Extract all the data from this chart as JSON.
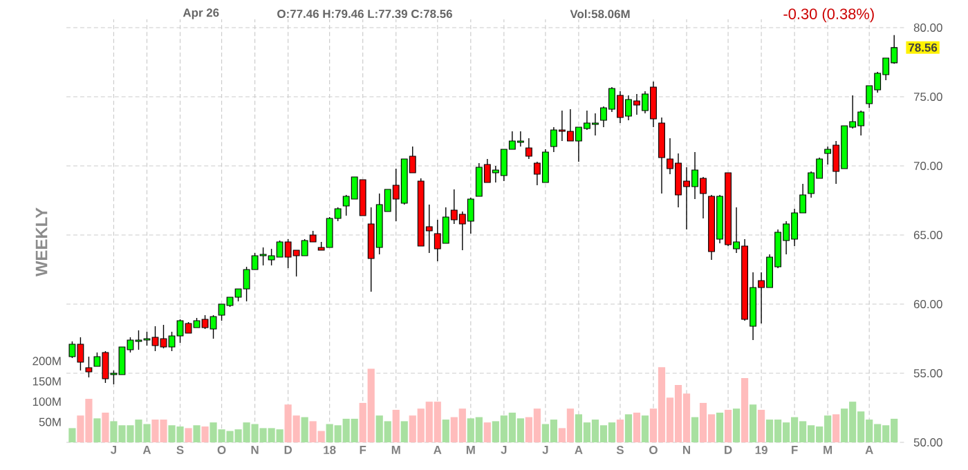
{
  "chart_data": {
    "type": "candlestick",
    "annotations": [
      "Apr 26",
      "O:77.46 H:79.46 L:77.39 C:78.56",
      "Vol:58.06M",
      "-0.30 (0.38%)",
      "WEEKLY",
      {
        "text": "78.56",
        "y": 78.56
      }
    ],
    "categories": [
      null,
      null,
      null,
      null,
      null,
      "J",
      null,
      null,
      null,
      "A",
      null,
      null,
      null,
      "S",
      null,
      null,
      null,
      null,
      "O",
      null,
      null,
      null,
      "N",
      null,
      null,
      null,
      "D",
      null,
      null,
      null,
      null,
      "18",
      null,
      null,
      null,
      "F",
      null,
      null,
      null,
      "M",
      null,
      null,
      null,
      null,
      "A",
      null,
      null,
      null,
      "M",
      null,
      null,
      null,
      "J",
      null,
      null,
      null,
      null,
      "J",
      null,
      null,
      null,
      "A",
      null,
      null,
      null,
      null,
      "S",
      null,
      null,
      null,
      "O",
      null,
      null,
      null,
      "N",
      null,
      null,
      null,
      null,
      "D",
      null,
      null,
      null,
      "19",
      null,
      null,
      null,
      "F",
      null,
      null,
      null,
      "M",
      null,
      null,
      null,
      null,
      "A",
      null,
      null,
      null
    ],
    "ohlc": [
      [
        56.2,
        57.3,
        56.1,
        57.1
      ],
      [
        57.1,
        57.6,
        55.2,
        55.8
      ],
      [
        55.4,
        56.2,
        54.7,
        55.1
      ],
      [
        55.5,
        56.5,
        55.5,
        56.2
      ],
      [
        56.5,
        56.6,
        54.3,
        54.6
      ],
      [
        54.9,
        55.2,
        54.2,
        55.0
      ],
      [
        54.9,
        56.9,
        54.9,
        56.9
      ],
      [
        56.7,
        57.6,
        56.5,
        57.4
      ],
      [
        57.3,
        58.1,
        56.7,
        57.4
      ],
      [
        57.4,
        58.0,
        57.0,
        57.5
      ],
      [
        57.6,
        58.4,
        56.6,
        57.0
      ],
      [
        57.5,
        58.5,
        56.8,
        56.9
      ],
      [
        56.9,
        58.0,
        56.6,
        57.7
      ],
      [
        57.7,
        58.9,
        57.2,
        58.8
      ],
      [
        58.6,
        58.7,
        57.9,
        57.9
      ],
      [
        58.3,
        59.0,
        58.3,
        58.8
      ],
      [
        58.9,
        59.2,
        58.2,
        58.3
      ],
      [
        58.2,
        59.2,
        57.5,
        59.1
      ],
      [
        59.2,
        60.0,
        58.8,
        60.0
      ],
      [
        59.9,
        60.5,
        59.8,
        60.5
      ],
      [
        60.5,
        61.1,
        60.2,
        61.1
      ],
      [
        61.1,
        62.7,
        60.2,
        62.5
      ],
      [
        62.5,
        63.7,
        62.5,
        63.5
      ],
      [
        63.5,
        64.1,
        62.8,
        63.6
      ],
      [
        63.2,
        64.0,
        62.8,
        63.5
      ],
      [
        63.4,
        64.6,
        63.4,
        64.5
      ],
      [
        64.5,
        64.7,
        62.6,
        63.4
      ],
      [
        63.9,
        63.9,
        62.0,
        63.5
      ],
      [
        63.5,
        64.7,
        63.5,
        64.6
      ],
      [
        65.0,
        65.3,
        64.5,
        64.5
      ],
      [
        64.1,
        64.5,
        63.9,
        63.9
      ],
      [
        64.1,
        66.3,
        64.1,
        66.2
      ],
      [
        66.2,
        67.0,
        66.0,
        66.9
      ],
      [
        67.1,
        67.9,
        66.4,
        67.8
      ],
      [
        67.6,
        69.2,
        67.6,
        69.2
      ],
      [
        69.0,
        69.0,
        66.4,
        66.4
      ],
      [
        65.8,
        67.0,
        60.9,
        63.3
      ],
      [
        64.1,
        68.0,
        63.6,
        67.2
      ],
      [
        66.7,
        68.3,
        66.7,
        68.3
      ],
      [
        68.6,
        69.8,
        66.0,
        67.6
      ],
      [
        67.3,
        70.5,
        67.2,
        70.5
      ],
      [
        70.7,
        71.4,
        69.5,
        69.5
      ],
      [
        68.9,
        69.1,
        64.2,
        64.2
      ],
      [
        65.6,
        67.2,
        63.7,
        65.3
      ],
      [
        65.1,
        66.1,
        63.1,
        64.0
      ],
      [
        64.4,
        67.0,
        64.4,
        66.3
      ],
      [
        66.8,
        68.3,
        65.8,
        66.1
      ],
      [
        66.5,
        66.7,
        63.9,
        65.8
      ],
      [
        66.0,
        67.7,
        65.1,
        67.6
      ],
      [
        67.8,
        70.2,
        67.8,
        69.9
      ],
      [
        70.1,
        70.5,
        68.8,
        68.8
      ],
      [
        69.5,
        70.0,
        68.8,
        69.7
      ],
      [
        69.3,
        71.2,
        68.9,
        71.2
      ],
      [
        71.2,
        72.5,
        71.2,
        71.8
      ],
      [
        71.7,
        72.5,
        71.4,
        71.8
      ],
      [
        71.3,
        72.0,
        70.5,
        70.7
      ],
      [
        70.2,
        70.3,
        68.6,
        69.4
      ],
      [
        68.8,
        71.2,
        68.8,
        71.0
      ],
      [
        71.4,
        72.8,
        71.0,
        72.6
      ],
      [
        72.6,
        74.0,
        71.8,
        72.5
      ],
      [
        72.5,
        74.1,
        71.8,
        71.8
      ],
      [
        71.8,
        72.8,
        70.3,
        72.8
      ],
      [
        72.7,
        74.0,
        72.6,
        73.1
      ],
      [
        73.0,
        73.8,
        72.2,
        73.1
      ],
      [
        73.3,
        74.3,
        72.8,
        74.2
      ],
      [
        74.1,
        75.7,
        73.9,
        75.6
      ],
      [
        75.1,
        75.4,
        73.1,
        73.5
      ],
      [
        73.6,
        75.1,
        73.3,
        74.8
      ],
      [
        74.7,
        75.2,
        73.7,
        74.4
      ],
      [
        74.0,
        75.4,
        73.8,
        75.2
      ],
      [
        75.7,
        76.1,
        72.8,
        73.4
      ],
      [
        73.1,
        73.5,
        68.0,
        70.6
      ],
      [
        70.5,
        72.0,
        69.4,
        69.8
      ],
      [
        70.2,
        70.9,
        67.0,
        67.9
      ],
      [
        68.9,
        69.9,
        65.4,
        68.5
      ],
      [
        68.5,
        71.0,
        67.6,
        69.7
      ],
      [
        69.1,
        69.2,
        66.2,
        68.0
      ],
      [
        67.8,
        67.9,
        63.2,
        63.8
      ],
      [
        64.7,
        67.9,
        64.4,
        67.8
      ],
      [
        69.5,
        69.5,
        64.2,
        64.3
      ],
      [
        64.0,
        67.0,
        63.7,
        64.5
      ],
      [
        64.2,
        64.7,
        58.8,
        58.9
      ],
      [
        58.4,
        62.3,
        57.4,
        61.2
      ],
      [
        61.7,
        62.3,
        58.6,
        61.2
      ],
      [
        61.2,
        63.6,
        61.2,
        63.4
      ],
      [
        62.7,
        65.4,
        62.6,
        65.2
      ],
      [
        64.6,
        66.0,
        63.6,
        65.8
      ],
      [
        64.7,
        66.9,
        64.2,
        66.6
      ],
      [
        66.6,
        68.7,
        66.6,
        67.9
      ],
      [
        68.0,
        69.6,
        67.7,
        69.5
      ],
      [
        69.1,
        70.6,
        69.1,
        70.5
      ],
      [
        70.9,
        71.4,
        70.1,
        71.2
      ],
      [
        71.5,
        71.8,
        68.7,
        69.6
      ],
      [
        69.8,
        72.9,
        69.8,
        72.9
      ],
      [
        72.8,
        75.1,
        72.7,
        73.2
      ],
      [
        72.9,
        74.0,
        72.2,
        73.9
      ],
      [
        74.5,
        75.8,
        74.2,
        75.8
      ],
      [
        75.5,
        76.8,
        75.3,
        76.7
      ],
      [
        76.6,
        77.8,
        76.2,
        77.8
      ],
      [
        77.46,
        79.46,
        77.39,
        78.56
      ]
    ],
    "colors": [
      "#00ff00",
      "#ff0000",
      "#ff0000",
      "#00ff00",
      "#ff0000",
      "#00ff00",
      "#00ff00",
      "#00ff00",
      "#00ff00",
      "#00ff00",
      "#ff0000",
      "#ff0000",
      "#00ff00",
      "#00ff00",
      "#ff0000",
      "#00ff00",
      "#ff0000",
      "#00ff00",
      "#00ff00",
      "#00ff00",
      "#00ff00",
      "#00ff00",
      "#00ff00",
      "#00ff00",
      "#00ff00",
      "#00ff00",
      "#ff0000",
      "#ff0000",
      "#00ff00",
      "#ff0000",
      "#ff0000",
      "#00ff00",
      "#00ff00",
      "#00ff00",
      "#00ff00",
      "#ff0000",
      "#ff0000",
      "#00ff00",
      "#00ff00",
      "#ff0000",
      "#00ff00",
      "#ff0000",
      "#ff0000",
      "#ff0000",
      "#ff0000",
      "#00ff00",
      "#ff0000",
      "#ff0000",
      "#00ff00",
      "#00ff00",
      "#ff0000",
      "#00ff00",
      "#00ff00",
      "#00ff00",
      "#00ff00",
      "#ff0000",
      "#ff0000",
      "#00ff00",
      "#00ff00",
      "#ff0000",
      "#ff0000",
      "#00ff00",
      "#00ff00",
      "#00ff00",
      "#00ff00",
      "#00ff00",
      "#ff0000",
      "#00ff00",
      "#ff0000",
      "#00ff00",
      "#ff0000",
      "#ff0000",
      "#ff0000",
      "#ff0000",
      "#ff0000",
      "#00ff00",
      "#ff0000",
      "#ff0000",
      "#00ff00",
      "#ff0000",
      "#00ff00",
      "#ff0000",
      "#00ff00",
      "#ff0000",
      "#00ff00",
      "#00ff00",
      "#00ff00",
      "#00ff00",
      "#00ff00",
      "#00ff00",
      "#00ff00",
      "#00ff00",
      "#ff0000",
      "#00ff00",
      "#00ff00",
      "#00ff00",
      "#00ff00",
      "#00ff00",
      "#00ff00",
      "#00ff00"
    ],
    "series": [
      {
        "type": "bar",
        "axis": "y2",
        "values": [
          35,
          66,
          107,
          59,
          73,
          52,
          42,
          42,
          56,
          45,
          56,
          56,
          42,
          39,
          35,
          42,
          39,
          49,
          32,
          28,
          32,
          49,
          45,
          35,
          35,
          32,
          93,
          66,
          62,
          52,
          28,
          45,
          42,
          58,
          58,
          97,
          181,
          66,
          52,
          80,
          52,
          66,
          83,
          100,
          100,
          56,
          62,
          83,
          59,
          62,
          49,
          52,
          66,
          73,
          59,
          62,
          83,
          45,
          56,
          35,
          83,
          69,
          49,
          56,
          42,
          49,
          56,
          69,
          73,
          66,
          83,
          185,
          110,
          141,
          120,
          62,
          97,
          69,
          73,
          80,
          83,
          158,
          93,
          80,
          56,
          56,
          49,
          62,
          52,
          42,
          39,
          66,
          69,
          83,
          100,
          76,
          56,
          45,
          42,
          58
        ],
        "colors": [
          "#a8e0a0",
          "#ffbcbc",
          "#ffbcbc",
          "#a8e0a0",
          "#ffbcbc",
          "#a8e0a0",
          "#a8e0a0",
          "#a8e0a0",
          "#a8e0a0",
          "#a8e0a0",
          "#ffbcbc",
          "#ffbcbc",
          "#a8e0a0",
          "#a8e0a0",
          "#ffbcbc",
          "#a8e0a0",
          "#ffbcbc",
          "#a8e0a0",
          "#a8e0a0",
          "#a8e0a0",
          "#a8e0a0",
          "#a8e0a0",
          "#a8e0a0",
          "#a8e0a0",
          "#a8e0a0",
          "#a8e0a0",
          "#ffbcbc",
          "#ffbcbc",
          "#a8e0a0",
          "#ffbcbc",
          "#ffbcbc",
          "#a8e0a0",
          "#a8e0a0",
          "#a8e0a0",
          "#a8e0a0",
          "#ffbcbc",
          "#ffbcbc",
          "#a8e0a0",
          "#a8e0a0",
          "#ffbcbc",
          "#a8e0a0",
          "#ffbcbc",
          "#ffbcbc",
          "#ffbcbc",
          "#ffbcbc",
          "#a8e0a0",
          "#ffbcbc",
          "#ffbcbc",
          "#a8e0a0",
          "#a8e0a0",
          "#ffbcbc",
          "#a8e0a0",
          "#a8e0a0",
          "#a8e0a0",
          "#a8e0a0",
          "#ffbcbc",
          "#ffbcbc",
          "#a8e0a0",
          "#a8e0a0",
          "#ffbcbc",
          "#ffbcbc",
          "#a8e0a0",
          "#a8e0a0",
          "#a8e0a0",
          "#a8e0a0",
          "#a8e0a0",
          "#ffbcbc",
          "#a8e0a0",
          "#ffbcbc",
          "#a8e0a0",
          "#ffbcbc",
          "#ffbcbc",
          "#ffbcbc",
          "#ffbcbc",
          "#ffbcbc",
          "#a8e0a0",
          "#ffbcbc",
          "#ffbcbc",
          "#a8e0a0",
          "#ffbcbc",
          "#a8e0a0",
          "#ffbcbc",
          "#a8e0a0",
          "#ffbcbc",
          "#a8e0a0",
          "#a8e0a0",
          "#a8e0a0",
          "#a8e0a0",
          "#a8e0a0",
          "#a8e0a0",
          "#a8e0a0",
          "#a8e0a0",
          "#ffbcbc",
          "#a8e0a0",
          "#a8e0a0",
          "#a8e0a0",
          "#a8e0a0",
          "#a8e0a0",
          "#a8e0a0",
          "#a8e0a0"
        ]
      }
    ],
    "ylim": [
      50,
      80.6
    ],
    "yticks": [
      {
        "value": 50,
        "label": "50.00"
      },
      {
        "value": 55,
        "label": "55.00"
      },
      {
        "value": 60,
        "label": "60.00"
      },
      {
        "value": 65,
        "label": "65.00"
      },
      {
        "value": 70,
        "label": "70.00"
      },
      {
        "value": 75,
        "label": "75.00"
      },
      {
        "value": 80,
        "label": "80.00"
      }
    ],
    "y2lim": [
      0,
      1040
    ],
    "y2ticks": [
      {
        "value": 50,
        "label": "50M"
      },
      {
        "value": 100,
        "label": "100M"
      },
      {
        "value": 150,
        "label": "150M"
      },
      {
        "value": 200,
        "label": "200M"
      }
    ],
    "grid": true
  }
}
